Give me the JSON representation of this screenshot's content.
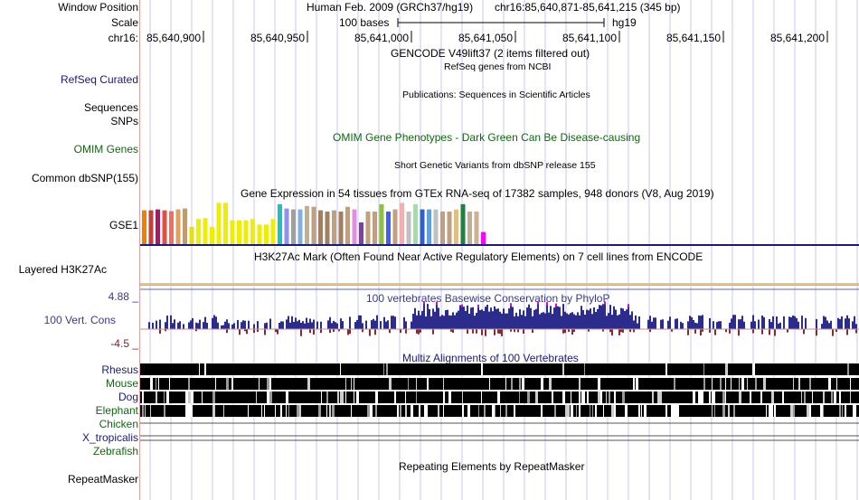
{
  "header": {
    "window_position_label": "Window Position",
    "scale_label": "Scale",
    "chrom_label": "chr16:",
    "assembly": "Human Feb. 2009 (GRCh37/hg19)",
    "position": "chr16:85,640,871-85,641,215 (345 bp)",
    "scale_text": "100 bases",
    "db": "hg19",
    "ticks": [
      "85,640,900",
      "85,640,950",
      "85,641,000",
      "85,641,050",
      "85,641,100",
      "85,641,150",
      "85,641,200"
    ]
  },
  "tracks": {
    "gencode_title": "GENCODE V49lift37 (2 items filtered out)",
    "refseq_title": "RefSeq genes from NCBI",
    "refseq_label": "RefSeq Curated",
    "publications_title": "Publications: Sequences in Scientific Articles",
    "sequences_label": "Sequences",
    "snps_label": "SNPs",
    "omim_title": "OMIM Gene Phenotypes - Dark Green Can Be Disease-causing",
    "omim_label": "OMIM Genes",
    "dbsnp_title": "Short Genetic Variants from dbSNP release 155",
    "dbsnp_label": "Common dbSNP(155)",
    "gtex_title": "Gene Expression in 54 tissues from GTEx RNA-seq of 17382 samples, 948 donors (V8, Aug 2019)",
    "gtex_label": "GSE1",
    "h3k27ac_title": "H3K27Ac Mark (Often Found Near Active Regulatory Elements) on 7 cell lines from ENCODE",
    "h3k27ac_label": "Layered H3K27Ac",
    "cons_title": "100 vertebrates Basewise Conservation by PhyloP",
    "cons_label": "100 Vert. Cons",
    "cons_max": "4.88 _",
    "cons_min": "-4.5 _",
    "multiz_title": "Multiz Alignments of 100 Vertebrates",
    "repeat_title": "Repeating Elements by RepeatMasker",
    "repeat_label": "RepeatMasker"
  },
  "species": [
    {
      "name": "Rhesus",
      "color": "#1a1a7a"
    },
    {
      "name": "Mouse",
      "color": "#116611"
    },
    {
      "name": "Dog",
      "color": "#1a1a7a"
    },
    {
      "name": "Elephant",
      "color": "#116611"
    },
    {
      "name": "Chicken",
      "color": "#116611"
    },
    {
      "name": "X_tropicalis",
      "color": "#1a1a7a"
    },
    {
      "name": "Zebrafish",
      "color": "#116611"
    }
  ],
  "gtex": {
    "max": 1.0,
    "tissues": [
      {
        "value": 0.78,
        "color": "#f08000"
      },
      {
        "value": 0.78,
        "color": "#c04040"
      },
      {
        "value": 0.8,
        "color": "#9a2060"
      },
      {
        "value": 0.78,
        "color": "#e05040"
      },
      {
        "value": 0.76,
        "color": "#f07060"
      },
      {
        "value": 0.8,
        "color": "#e0a060"
      },
      {
        "value": 0.82,
        "color": "#c09a70"
      },
      {
        "value": 0.4,
        "color": "#e8e000"
      },
      {
        "value": 0.58,
        "color": "#eeee00"
      },
      {
        "value": 0.6,
        "color": "#eeee00"
      },
      {
        "value": 0.4,
        "color": "#eeee00"
      },
      {
        "value": 0.95,
        "color": "#eeee00"
      },
      {
        "value": 0.95,
        "color": "#eeee00"
      },
      {
        "value": 0.55,
        "color": "#eeee00"
      },
      {
        "value": 0.55,
        "color": "#eeee00"
      },
      {
        "value": 0.55,
        "color": "#eeee00"
      },
      {
        "value": 0.58,
        "color": "#eeee00"
      },
      {
        "value": 0.45,
        "color": "#eeee00"
      },
      {
        "value": 0.45,
        "color": "#eeee00"
      },
      {
        "value": 0.58,
        "color": "#eeee00"
      },
      {
        "value": 0.92,
        "color": "#20c0c0"
      },
      {
        "value": 0.82,
        "color": "#9090f0"
      },
      {
        "value": 0.8,
        "color": "#a0a0a0"
      },
      {
        "value": 0.8,
        "color": "#80b0e0"
      },
      {
        "value": 0.88,
        "color": "#c0b090"
      },
      {
        "value": 0.86,
        "color": "#c0a080"
      },
      {
        "value": 0.78,
        "color": "#a08060"
      },
      {
        "value": 0.75,
        "color": "#a08060"
      },
      {
        "value": 0.78,
        "color": "#c0a080"
      },
      {
        "value": 0.75,
        "color": "#a08060"
      },
      {
        "value": 0.86,
        "color": "#c0a080"
      },
      {
        "value": 0.8,
        "color": "#e090e0"
      },
      {
        "value": 0.5,
        "color": "#8040a0"
      },
      {
        "value": 0.75,
        "color": "#c0a080"
      },
      {
        "value": 0.75,
        "color": "#c0a080"
      },
      {
        "value": 0.92,
        "color": "#90c040"
      },
      {
        "value": 0.75,
        "color": "#4060f0"
      },
      {
        "value": 0.8,
        "color": "#c0a080"
      },
      {
        "value": 0.95,
        "color": "#f0b0b0"
      },
      {
        "value": 0.75,
        "color": "#c0c0c0"
      },
      {
        "value": 0.92,
        "color": "#a0e0a0"
      },
      {
        "value": 0.8,
        "color": "#3060d0"
      },
      {
        "value": 0.8,
        "color": "#60a0e0"
      },
      {
        "value": 0.8,
        "color": "#c0c0c0"
      },
      {
        "value": 0.75,
        "color": "#c0a080"
      },
      {
        "value": 0.75,
        "color": "#c0a080"
      },
      {
        "value": 0.8,
        "color": "#e0c080"
      },
      {
        "value": 0.92,
        "color": "#208040"
      },
      {
        "value": 0.75,
        "color": "#c0b090"
      },
      {
        "value": 0.75,
        "color": "#d0b090"
      },
      {
        "value": 0.28,
        "color": "#ff00ff"
      }
    ]
  }
}
